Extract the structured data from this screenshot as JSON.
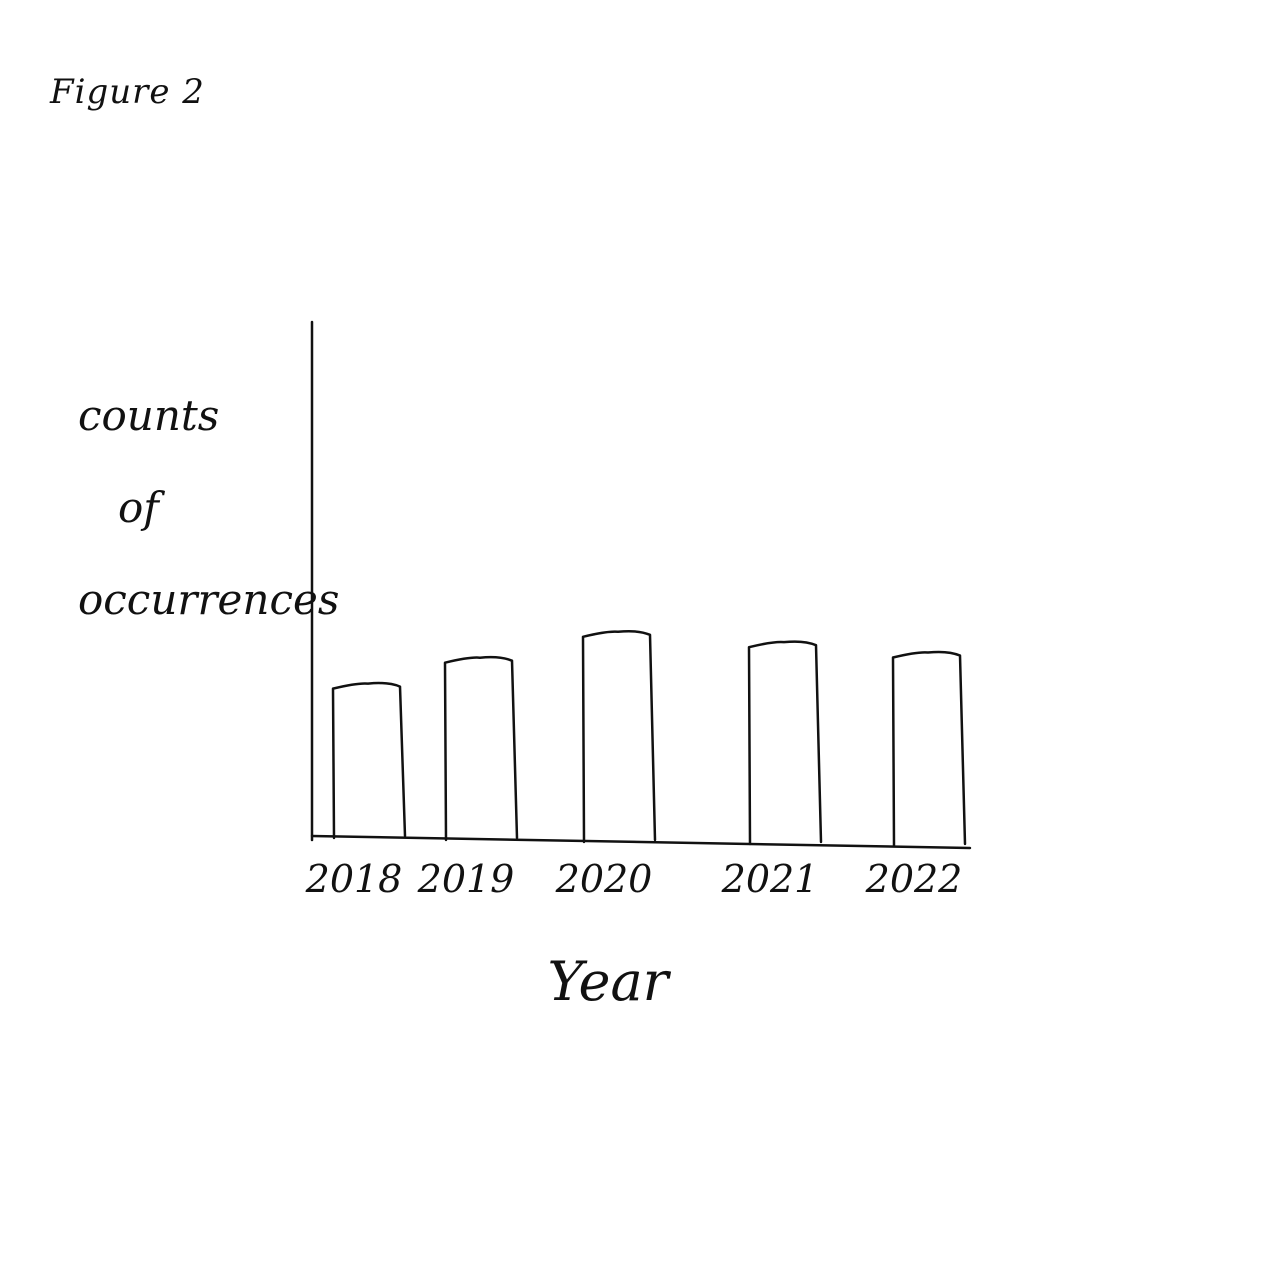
{
  "chart_data": {
    "type": "bar",
    "title": "Figure 2",
    "xlabel": "Year",
    "ylabel_lines": [
      "counts",
      "of",
      "occurrences"
    ],
    "categories": [
      "2018",
      "2019",
      "2020",
      "2021",
      "2022"
    ],
    "values": [
      3.0,
      3.5,
      4.0,
      3.8,
      3.6
    ],
    "ylim": [
      0,
      10
    ],
    "grid": false,
    "legend": "none",
    "colors": {
      "stroke": "#111111",
      "fill": "#ffffff"
    }
  }
}
